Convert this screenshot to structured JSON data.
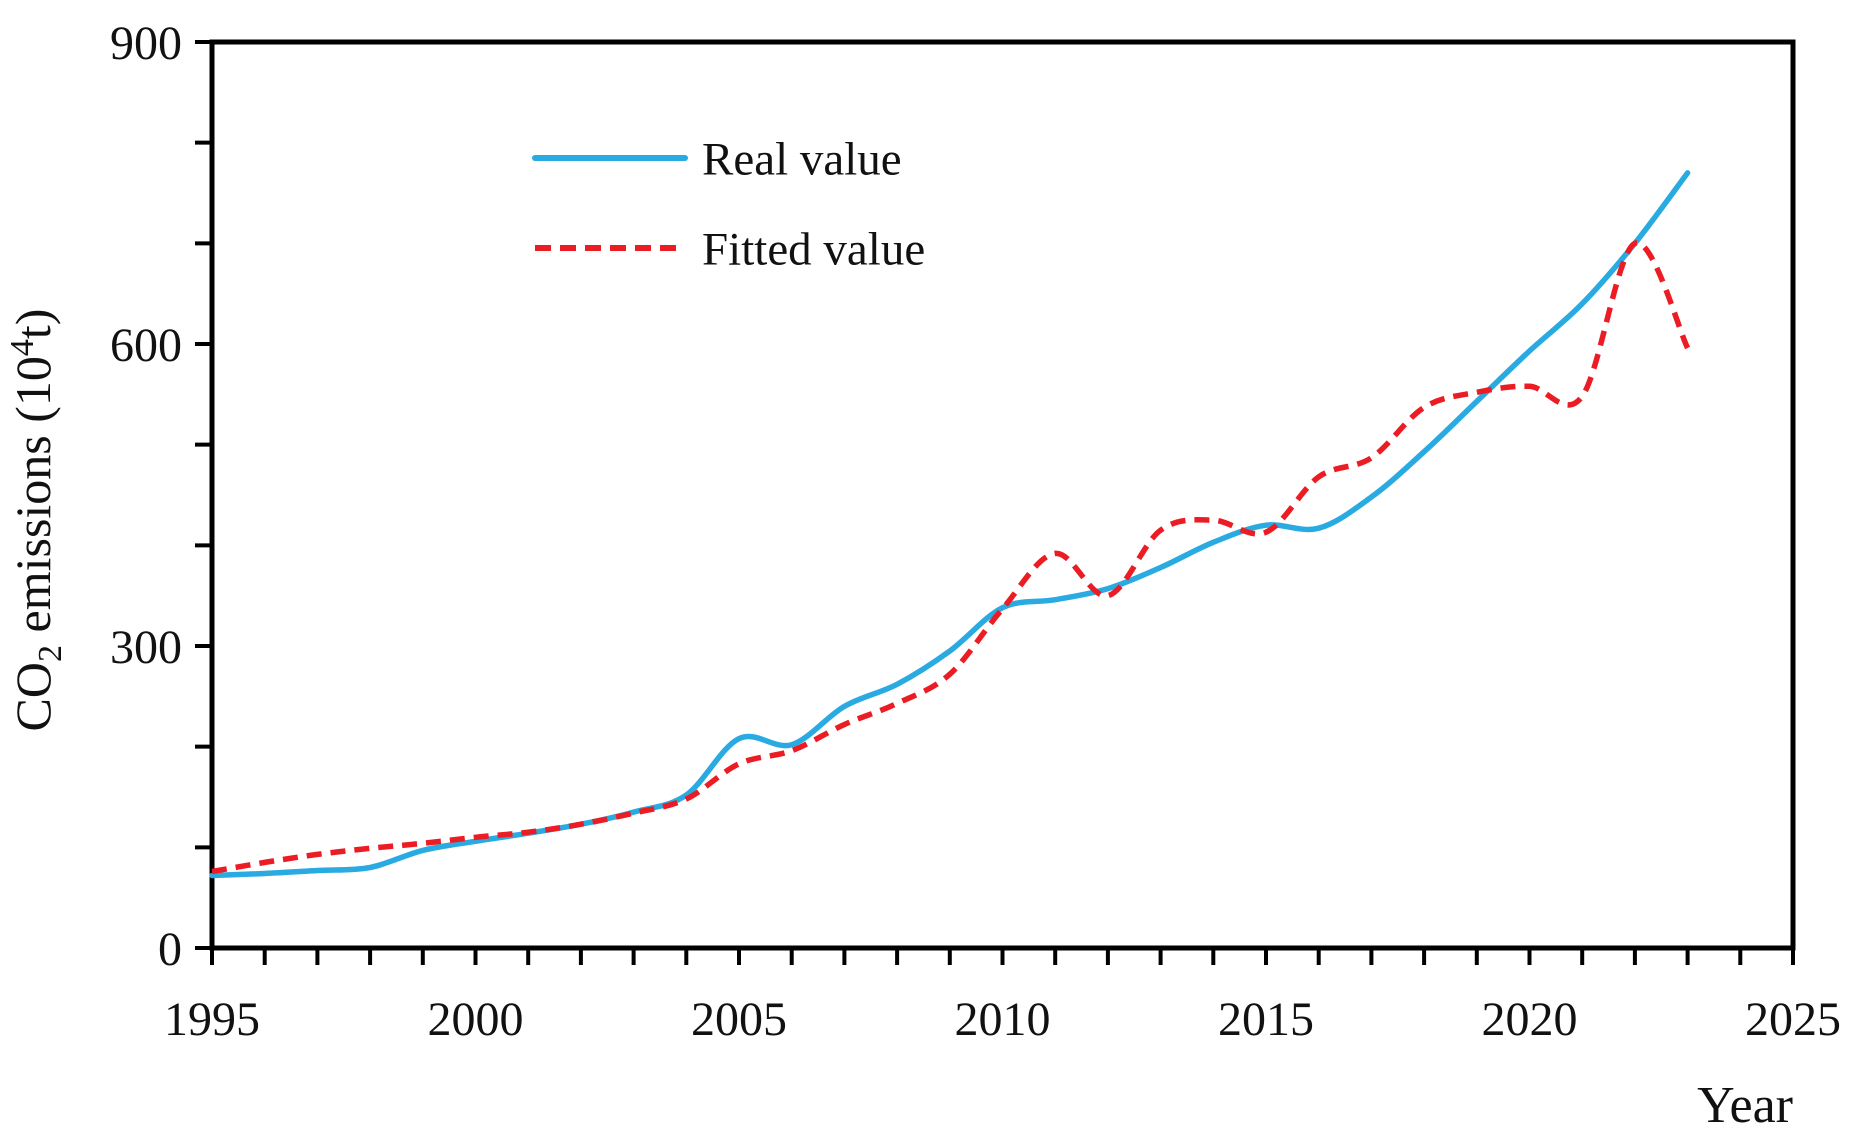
{
  "figure": {
    "background": "#ffffff",
    "axis_color": "#000000"
  },
  "legend": {
    "items": [
      {
        "label": "Real value",
        "swatch": "solid-blue-line"
      },
      {
        "label": "Fitted value",
        "swatch": "dashed-red-line"
      }
    ]
  },
  "chart_data": {
    "type": "line",
    "title": "",
    "xlabel": "Year",
    "ylabel": "CO2 emissions (10^4 t)",
    "ylabel_parts": {
      "prefix": "CO",
      "subscript": "2",
      "middle": " emissions (10",
      "superscript": "4",
      "suffix": "t)"
    },
    "xlim": [
      1995,
      2025
    ],
    "ylim": [
      0,
      900
    ],
    "grid": false,
    "legend_position": "upper-left-inside",
    "y_tick_labels": [
      "0",
      "300",
      "600",
      "900"
    ],
    "y_major_tick_values": [
      0,
      300,
      600,
      900
    ],
    "y_minor_tick_step": 100,
    "x_tick_labels": [
      "1995",
      "2000",
      "2005",
      "2010",
      "2015",
      "2020",
      "2025"
    ],
    "x_major_tick_values": [
      1995,
      2000,
      2005,
      2010,
      2015,
      2020,
      2025
    ],
    "x_minor_tick_step": 1,
    "x": [
      1995,
      1996,
      1997,
      1998,
      1999,
      2000,
      2001,
      2002,
      2003,
      2004,
      2005,
      2006,
      2007,
      2008,
      2009,
      2010,
      2011,
      2012,
      2013,
      2014,
      2015,
      2016,
      2017,
      2018,
      2019,
      2020,
      2021,
      2022,
      2023
    ],
    "series": [
      {
        "name": "Real value",
        "color": "#29abe2",
        "line_style": "solid",
        "values": [
          72,
          74,
          77,
          80,
          97,
          106,
          114,
          123,
          135,
          152,
          208,
          202,
          240,
          262,
          295,
          338,
          346,
          357,
          378,
          403,
          420,
          417,
          448,
          493,
          543,
          593,
          640,
          700,
          770
        ]
      },
      {
        "name": "Fitted value",
        "color": "#ec1c24",
        "line_style": "dashed",
        "values": [
          76,
          85,
          93,
          99,
          104,
          110,
          115,
          123,
          134,
          148,
          183,
          196,
          222,
          243,
          272,
          337,
          392,
          350,
          415,
          425,
          413,
          468,
          487,
          537,
          552,
          558,
          548,
          700,
          596
        ]
      }
    ]
  }
}
